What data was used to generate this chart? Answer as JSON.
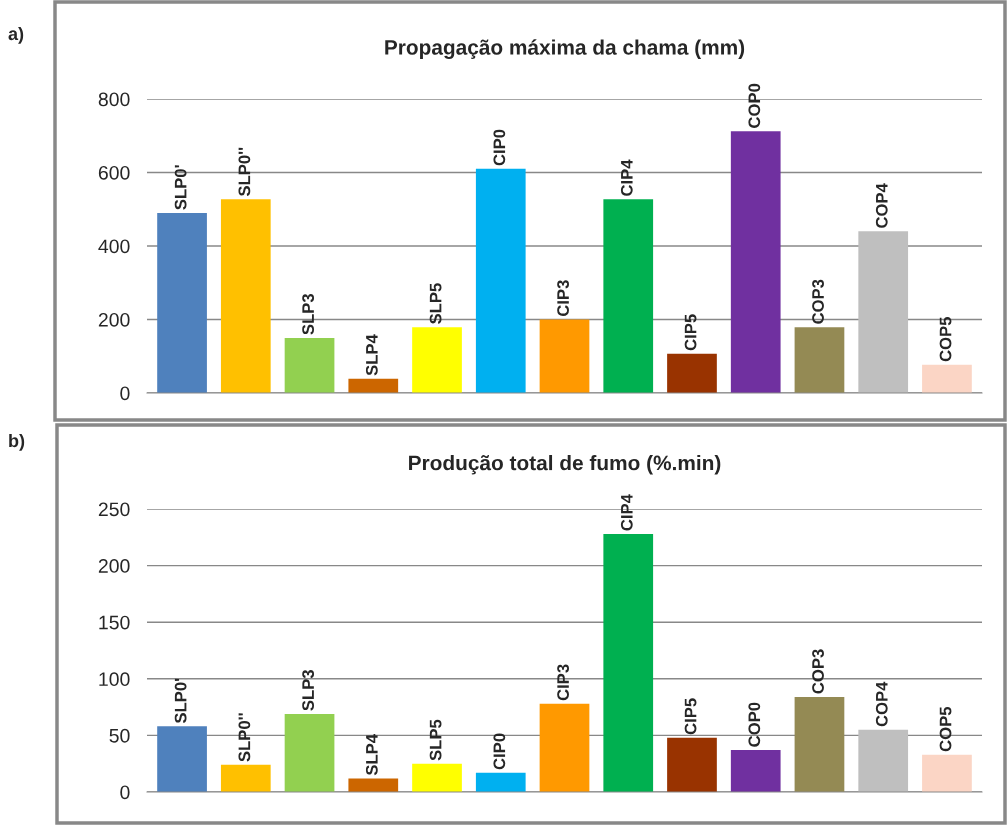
{
  "chart_data": [
    {
      "type": "bar",
      "title": "Propagação máxima da chama (mm)",
      "annotations": [
        "a)"
      ],
      "categories": [
        "SLP0'",
        "SLP0''",
        "SLP3",
        "SLP4",
        "SLP5",
        "CIP0",
        "CIP3",
        "CIP4",
        "CIP5",
        "COP0",
        "COP3",
        "COP4",
        "COP5"
      ],
      "values": [
        490,
        527,
        150,
        39,
        179,
        610,
        200,
        527,
        107,
        712,
        179,
        440,
        77
      ],
      "colors": [
        "#4f81bd",
        "#ffc000",
        "#92d050",
        "#cc6600",
        "#ffff00",
        "#00b0f0",
        "#ff9900",
        "#00b050",
        "#993300",
        "#7030a0",
        "#948a54",
        "#bfbfbf",
        "#fbd5c5"
      ],
      "ylim": [
        0,
        800
      ],
      "yticks": [
        0,
        200,
        400,
        600,
        800
      ],
      "grid": "y",
      "tick_labels": "y",
      "legend": false
    },
    {
      "type": "bar",
      "title": "Produção total de fumo (%.min)",
      "annotations": [
        "b)"
      ],
      "categories": [
        "SLP0'",
        "SLP0''",
        "SLP3",
        "SLP4",
        "SLP5",
        "CIP0",
        "CIP3",
        "CIP4",
        "CIP5",
        "COP0",
        "COP3",
        "COP4",
        "COP5"
      ],
      "values": [
        58,
        24,
        69,
        12,
        25,
        17,
        78,
        228,
        48,
        37,
        84,
        55,
        33
      ],
      "colors": [
        "#4f81bd",
        "#ffc000",
        "#92d050",
        "#cc6600",
        "#ffff00",
        "#00b0f0",
        "#ff9900",
        "#00b050",
        "#993300",
        "#7030a0",
        "#948a54",
        "#bfbfbf",
        "#fbd5c5"
      ],
      "ylim": [
        0,
        250
      ],
      "yticks": [
        0,
        50,
        100,
        150,
        200,
        250
      ],
      "grid": "y",
      "tick_labels": "y",
      "legend": false
    }
  ]
}
